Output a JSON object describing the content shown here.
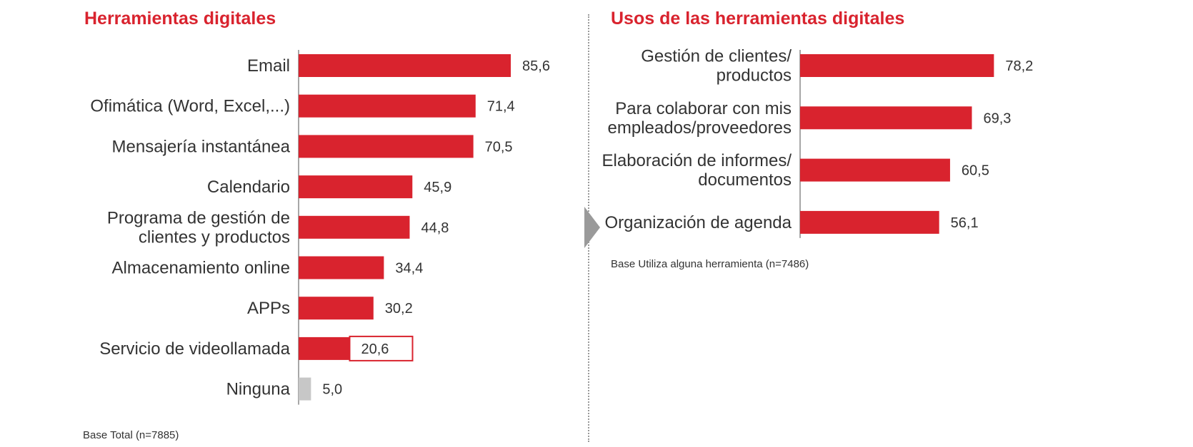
{
  "colors": {
    "accent": "#d9232e",
    "bar": "#d9232e",
    "bar_muted": "#c7c7c7",
    "text": "#333333",
    "divider": "#9a9a9a"
  },
  "arrow_icon": "chevron-right-icon",
  "left": {
    "title": "Herramientas digitales",
    "note": "Base Total (n=7885)"
  },
  "right": {
    "title": "Usos de las herramientas digitales",
    "note": "Base Utiliza alguna herramienta (n=7486)"
  },
  "chart_data": [
    {
      "type": "bar",
      "orientation": "horizontal",
      "title": "Herramientas digitales",
      "categories": [
        [
          "Email"
        ],
        [
          "Ofimática (Word, Excel,...)"
        ],
        [
          "Mensajería instantánea"
        ],
        [
          "Calendario"
        ],
        [
          "Programa de gestión de",
          "clientes y productos"
        ],
        [
          "Almacenamiento online"
        ],
        [
          "APPs"
        ],
        [
          "Servicio de videollamada"
        ],
        [
          "Ninguna"
        ]
      ],
      "values": [
        85.6,
        71.4,
        70.5,
        45.9,
        44.8,
        34.4,
        30.2,
        20.6,
        5.0
      ],
      "value_labels": [
        "85,6",
        "71,4",
        "70,5",
        "45,9",
        "44,8",
        "34,4",
        "30,2",
        "20,6",
        "5,0"
      ],
      "highlighted_index": 7,
      "muted_index": 8,
      "xlim": [
        0,
        100
      ],
      "grid": false,
      "legend": "none"
    },
    {
      "type": "bar",
      "orientation": "horizontal",
      "title": "Usos de las herramientas digitales",
      "categories": [
        [
          "Gestión de clientes/",
          "productos"
        ],
        [
          "Para colaborar con mis",
          "empleados/proveedores"
        ],
        [
          "Elaboración de informes/",
          "documentos"
        ],
        [
          "Organización de agenda"
        ]
      ],
      "values": [
        78.2,
        69.3,
        60.5,
        56.1
      ],
      "value_labels": [
        "78,2",
        "69,3",
        "60,5",
        "56,1"
      ],
      "xlim": [
        0,
        100
      ],
      "grid": false,
      "legend": "none"
    }
  ]
}
